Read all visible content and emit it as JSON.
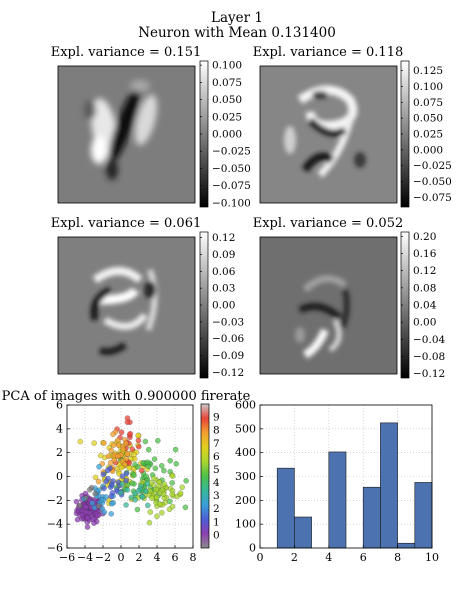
{
  "figure": {
    "title_line1": "Layer 1",
    "title_line2": "Neuron with Mean 0.131400"
  },
  "chart_data": [
    {
      "type": "heatmap",
      "title": "Expl. variance = 0.151",
      "colormap": "gray",
      "colorbar_ticks": [
        0.1,
        0.075,
        0.05,
        0.025,
        0.0,
        -0.025,
        -0.05,
        -0.075,
        -0.1
      ],
      "colorbar_tick_labels": [
        "0.100",
        "0.075",
        "0.050",
        "0.025",
        "0.000",
        "−0.025",
        "−0.050",
        "−0.075",
        "−0.100"
      ],
      "vmin": -0.106,
      "vmax": 0.106
    },
    {
      "type": "heatmap",
      "title": "Expl. variance = 0.118",
      "colormap": "gray",
      "colorbar_ticks": [
        0.125,
        0.1,
        0.075,
        0.05,
        0.025,
        0.0,
        -0.025,
        -0.05,
        -0.075
      ],
      "colorbar_tick_labels": [
        "0.125",
        "0.100",
        "0.075",
        "0.050",
        "0.025",
        "0.000",
        "−0.025",
        "−0.050",
        "−0.075"
      ],
      "vmin": -0.09,
      "vmax": 0.14
    },
    {
      "type": "heatmap",
      "title": "Expl. variance = 0.061",
      "colormap": "gray",
      "colorbar_ticks": [
        0.12,
        0.09,
        0.06,
        0.03,
        0.0,
        -0.03,
        -0.06,
        -0.09,
        -0.12
      ],
      "colorbar_tick_labels": [
        "0.12",
        "0.09",
        "0.06",
        "0.03",
        "0.00",
        "−0.03",
        "−0.06",
        "−0.09",
        "−0.12"
      ],
      "vmin": -0.13,
      "vmax": 0.13
    },
    {
      "type": "heatmap",
      "title": "Expl. variance = 0.052",
      "colormap": "gray",
      "colorbar_ticks": [
        0.2,
        0.16,
        0.12,
        0.08,
        0.04,
        0.0,
        -0.04,
        -0.08,
        -0.12
      ],
      "colorbar_tick_labels": [
        "0.20",
        "0.16",
        "0.12",
        "0.08",
        "0.04",
        "0.00",
        "−0.04",
        "−0.08",
        "−0.12"
      ],
      "vmin": -0.13,
      "vmax": 0.21
    },
    {
      "type": "scatter",
      "title": "PCA of images with 0.900000 firerate",
      "xlim": [
        -6,
        8
      ],
      "ylim": [
        -6,
        6
      ],
      "xticks": [
        -6,
        -4,
        -2,
        0,
        2,
        4,
        6,
        8
      ],
      "xtick_labels": [
        "−6",
        "−4",
        "−2",
        "0",
        "2",
        "4",
        "6",
        "8"
      ],
      "yticks": [
        -6,
        -4,
        -2,
        0,
        2,
        4,
        6
      ],
      "ytick_labels": [
        "−6",
        "−4",
        "−2",
        "0",
        "2",
        "4",
        "6"
      ],
      "grid": true,
      "colorbar_labels": [
        "0",
        "1",
        "2",
        "3",
        "4",
        "5",
        "6",
        "7",
        "8",
        "9"
      ],
      "class_colors": [
        "#7a7a7a",
        "#8c3fb0",
        "#4d5fd6",
        "#3aa0d8",
        "#38b89a",
        "#4ec04a",
        "#a8d62e",
        "#e0d020",
        "#f3a030",
        "#e8453a"
      ],
      "clusters": [
        {
          "label": 1,
          "cx": -3.5,
          "cy": -2.8,
          "sx": 0.7,
          "sy": 0.55,
          "n": 110
        },
        {
          "label": 7,
          "cx": 0.0,
          "cy": 1.2,
          "sx": 1.3,
          "sy": 1.5,
          "n": 80
        },
        {
          "label": 5,
          "cx": 2.8,
          "cy": 0.0,
          "sx": 1.6,
          "sy": 1.3,
          "n": 60
        },
        {
          "label": 6,
          "cx": 4.5,
          "cy": -1.5,
          "sx": 1.3,
          "sy": 0.7,
          "n": 55
        },
        {
          "label": 9,
          "cx": 0.5,
          "cy": 2.8,
          "sx": 0.8,
          "sy": 0.9,
          "n": 20
        },
        {
          "label": 8,
          "cx": -0.5,
          "cy": 1.8,
          "sx": 1.0,
          "sy": 1.2,
          "n": 30
        },
        {
          "label": 3,
          "cx": -2.0,
          "cy": -1.8,
          "sx": 1.0,
          "sy": 0.8,
          "n": 25
        },
        {
          "label": 2,
          "cx": -1.0,
          "cy": -1.0,
          "sx": 1.0,
          "sy": 0.8,
          "n": 20
        },
        {
          "label": 4,
          "cx": 1.5,
          "cy": -1.5,
          "sx": 1.0,
          "sy": 0.6,
          "n": 15
        },
        {
          "label": 0,
          "cx": -3.0,
          "cy": -2.0,
          "sx": 0.6,
          "sy": 0.5,
          "n": 6
        }
      ]
    },
    {
      "type": "bar",
      "title": "",
      "x": [
        1,
        2,
        4,
        6,
        7,
        8,
        9
      ],
      "values": [
        335,
        130,
        403,
        255,
        525,
        20,
        275
      ],
      "bar_width": 1,
      "xlim": [
        0,
        10
      ],
      "ylim": [
        0,
        600
      ],
      "xticks": [
        0,
        2,
        4,
        6,
        8,
        10
      ],
      "yticks": [
        0,
        100,
        200,
        300,
        400,
        500,
        600
      ],
      "grid": true,
      "bar_color": "#4c72b0"
    }
  ]
}
